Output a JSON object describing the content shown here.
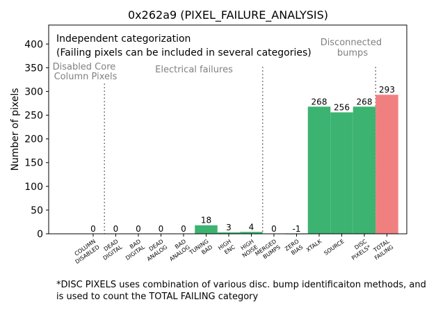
{
  "chart_data": {
    "type": "bar",
    "title": "0x262a9 (PIXEL_FAILURE_ANALYSIS)",
    "xlabel": "",
    "ylabel": "Number of pixels",
    "ylim": [
      0,
      440
    ],
    "yticks": [
      0,
      50,
      100,
      150,
      200,
      250,
      300,
      350,
      400
    ],
    "grid": false,
    "categories": [
      [
        "COLUMN",
        "DISABLED"
      ],
      [
        "DEAD",
        "DIGITAL"
      ],
      [
        "BAD",
        "DIGITAL"
      ],
      [
        "DEAD",
        "ANALOG"
      ],
      [
        "BAD",
        "ANALOG"
      ],
      [
        "TUNING",
        "BAD"
      ],
      [
        "HIGH",
        "ENC"
      ],
      [
        "HIGH",
        "NOISE"
      ],
      [
        "MERGED",
        "BUMPS"
      ],
      [
        "ZERO",
        "BIAS"
      ],
      [
        "XTALK"
      ],
      [
        "SOURCE"
      ],
      [
        "DISC",
        "PIXELS*"
      ],
      [
        "TOTAL",
        "FAILING"
      ]
    ],
    "values": [
      0,
      0,
      0,
      0,
      0,
      18,
      3,
      4,
      0,
      -1,
      268,
      256,
      268,
      293
    ],
    "value_labels": [
      "0",
      "0",
      "0",
      "0",
      "0",
      "18",
      "3",
      "4",
      "0",
      "-1",
      "268",
      "256",
      "268",
      "293"
    ],
    "bar_colors": [
      "#3cb371",
      "#3cb371",
      "#3cb371",
      "#3cb371",
      "#3cb371",
      "#3cb371",
      "#3cb371",
      "#3cb371",
      "#3cb371",
      "#3cb371",
      "#3cb371",
      "#3cb371",
      "#3cb371",
      "#f08080"
    ],
    "separators_after_index": [
      0,
      7,
      12
    ],
    "annotations": {
      "heading_line1": "Independent categorization",
      "heading_line2": "(Failing pixels can be included in several categories)",
      "group_disabled": [
        "Disabled Core",
        "Column Pixels"
      ],
      "group_electrical": [
        "Electrical failures"
      ],
      "group_disconnected": [
        "Disconnected",
        "bumps"
      ]
    },
    "footnote": "*DISC PIXELS uses combination of various disc. bump identificaiton methods, and is used to count the TOTAL FAILING category"
  }
}
